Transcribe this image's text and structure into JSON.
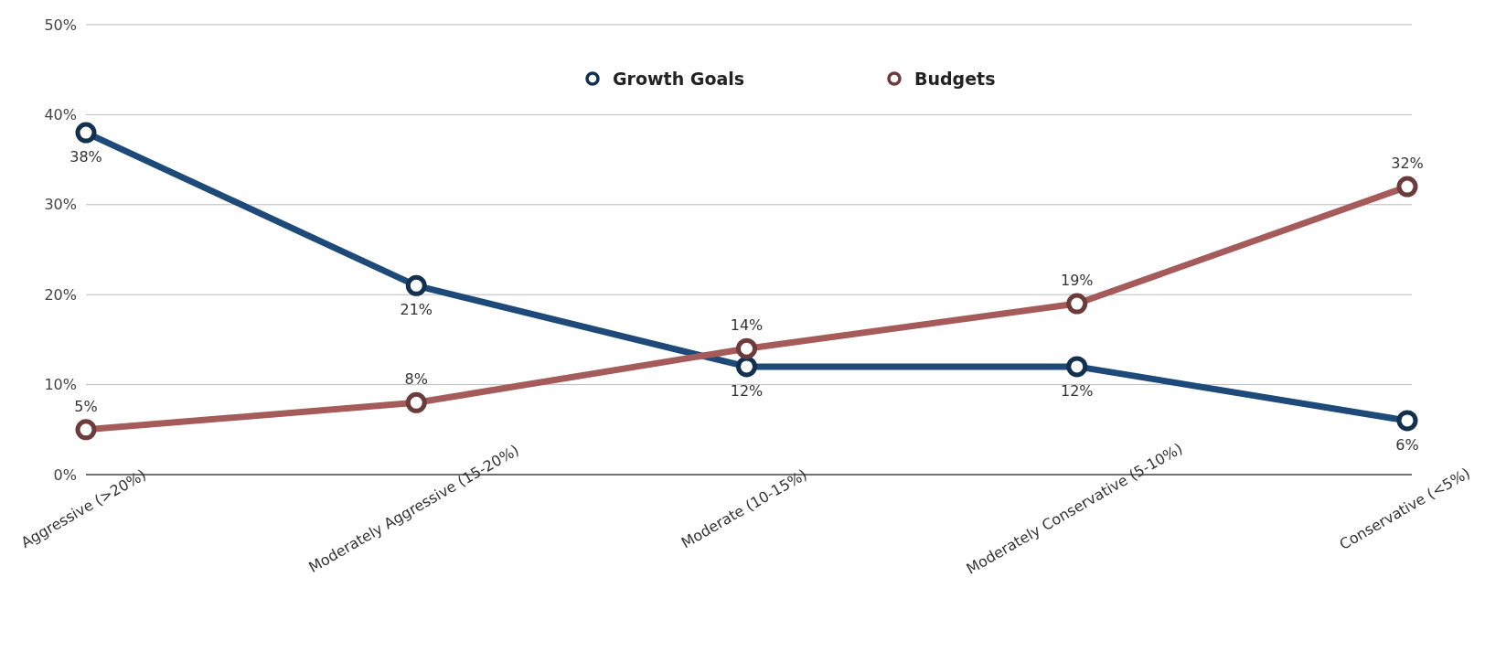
{
  "chart_data": {
    "type": "line",
    "categories": [
      "Aggressive (>20%)",
      "Moderately Aggressive (15-20%)",
      "Moderate (10-15%)",
      "Moderately Conservative (5-10%)",
      "Conservative (<5%)"
    ],
    "series": [
      {
        "name": "Growth Goals",
        "color": "#1d4a78",
        "values": [
          38,
          21,
          12,
          12,
          6
        ],
        "value_labels": [
          "38%",
          "21%",
          "12%",
          "12%",
          "6%"
        ]
      },
      {
        "name": "Budgets",
        "color": "#a65b5b",
        "values": [
          5,
          8,
          14,
          19,
          32
        ],
        "value_labels": [
          "5%",
          "8%",
          "14%",
          "19%",
          "32%"
        ]
      }
    ],
    "ylim": [
      0,
      50
    ],
    "yticks": [
      {
        "value": 0,
        "label": "0%"
      },
      {
        "value": 10,
        "label": "10%"
      },
      {
        "value": 20,
        "label": "20%"
      },
      {
        "value": 30,
        "label": "30%"
      },
      {
        "value": 40,
        "label": "40%"
      },
      {
        "value": 50,
        "label": "50%"
      }
    ],
    "grid": "y",
    "legend": "top",
    "marker": "circle",
    "line_style": "solid"
  }
}
